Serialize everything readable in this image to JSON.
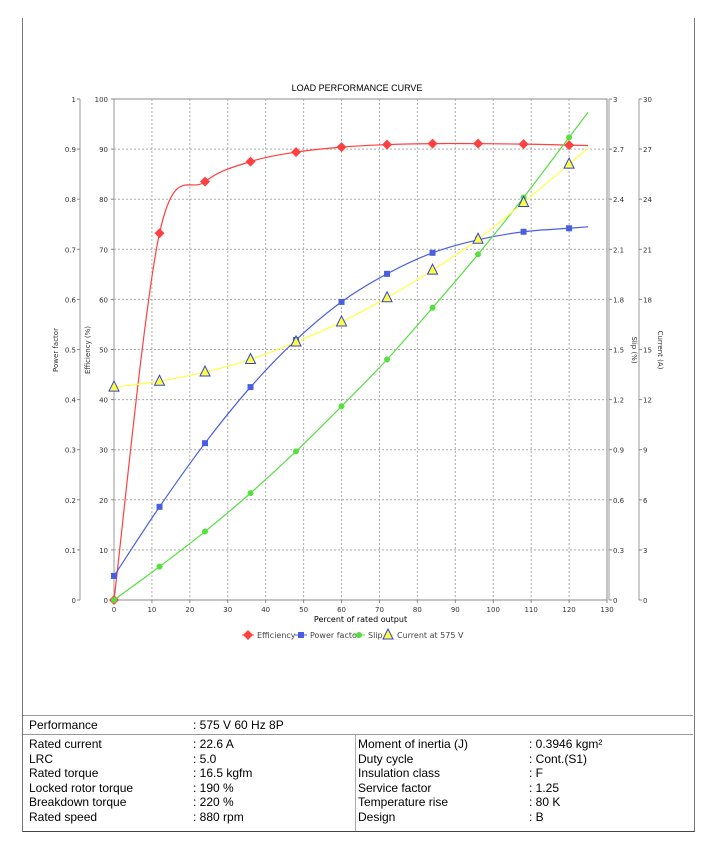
{
  "chart_data": {
    "type": "line",
    "title": "LOAD PERFORMANCE CURVE",
    "xlabel": "Percent of rated output",
    "xlim": [
      0,
      130
    ],
    "x_ticks": [
      "0",
      "10",
      "20",
      "30",
      "40",
      "50",
      "60",
      "70",
      "80",
      "90",
      "100",
      "110",
      "120",
      "130"
    ],
    "grid": true,
    "legend_placement": "bottom",
    "axes": {
      "power_factor": {
        "label": "Power factor",
        "range": [
          0,
          1
        ],
        "ticks": [
          "0",
          "0.1",
          "0.2",
          "0.3",
          "0.4",
          "0.5",
          "0.6",
          "0.7",
          "0.8",
          "0.9",
          "1"
        ]
      },
      "efficiency": {
        "label": "Efficiency (%)",
        "range": [
          0,
          100
        ],
        "ticks": [
          "0",
          "10",
          "20",
          "30",
          "40",
          "50",
          "60",
          "70",
          "80",
          "90",
          "100"
        ]
      },
      "slip": {
        "label": "Slip (%)",
        "range": [
          0,
          3
        ],
        "ticks": [
          "0",
          "0.3",
          "0.6",
          "0.9",
          "1.2",
          "1.5",
          "1.8",
          "2.1",
          "2.4",
          "2.7",
          "3"
        ]
      },
      "current": {
        "label": "Current (A)",
        "range": [
          0,
          30
        ],
        "ticks": [
          "0",
          "3",
          "6",
          "9",
          "12",
          "15",
          "18",
          "21",
          "24",
          "27",
          "30"
        ]
      }
    },
    "x": [
      0,
      12,
      24,
      36,
      48,
      60,
      72,
      84,
      96,
      108,
      120
    ],
    "series": [
      {
        "name": "Efficiency",
        "axis": "efficiency",
        "color": "#ff4040",
        "marker": "diamond",
        "values": [
          0,
          73.2,
          83.5,
          87.5,
          89.4,
          90.4,
          90.9,
          91.1,
          91.1,
          91.0,
          90.8
        ]
      },
      {
        "name": "Power factor",
        "axis": "power_factor",
        "color": "#4a5fe0",
        "marker": "square",
        "values": [
          0.048,
          0.186,
          0.313,
          0.425,
          0.519,
          0.595,
          0.651,
          0.693,
          0.719,
          0.735,
          0.742
        ]
      },
      {
        "name": "Slip",
        "axis": "slip",
        "color": "#55e040",
        "marker": "circle",
        "values": [
          0,
          0.2,
          0.41,
          0.64,
          0.89,
          1.16,
          1.44,
          1.75,
          2.07,
          2.41,
          2.77
        ]
      },
      {
        "name": "Current at 575 V",
        "axis": "current",
        "color": "#ffff44",
        "marker": "triangle",
        "values": [
          12.75,
          13.1,
          13.65,
          14.4,
          15.45,
          16.65,
          18.1,
          19.75,
          21.6,
          23.8,
          26.1
        ]
      }
    ]
  },
  "table": {
    "performance_label": "Performance",
    "performance_value": ": 575 V 60 Hz 8P",
    "left": [
      {
        "label": "Rated current",
        "value": ": 22.6 A"
      },
      {
        "label": "LRC",
        "value": ": 5.0"
      },
      {
        "label": "Rated torque",
        "value": ": 16.5 kgfm"
      },
      {
        "label": "Locked rotor torque",
        "value": ": 190 %"
      },
      {
        "label": "Breakdown torque",
        "value": ": 220 %"
      },
      {
        "label": "Rated speed",
        "value": ": 880 rpm"
      }
    ],
    "right": [
      {
        "label": "Moment of inertia (J)",
        "value": ": 0.3946 kgm²"
      },
      {
        "label": "Duty cycle",
        "value": ": Cont.(S1)"
      },
      {
        "label": "Insulation class",
        "value": ": F"
      },
      {
        "label": "Service factor",
        "value": ": 1.25"
      },
      {
        "label": "Temperature rise",
        "value": ": 80 K"
      },
      {
        "label": "Design",
        "value": ": B"
      }
    ]
  }
}
